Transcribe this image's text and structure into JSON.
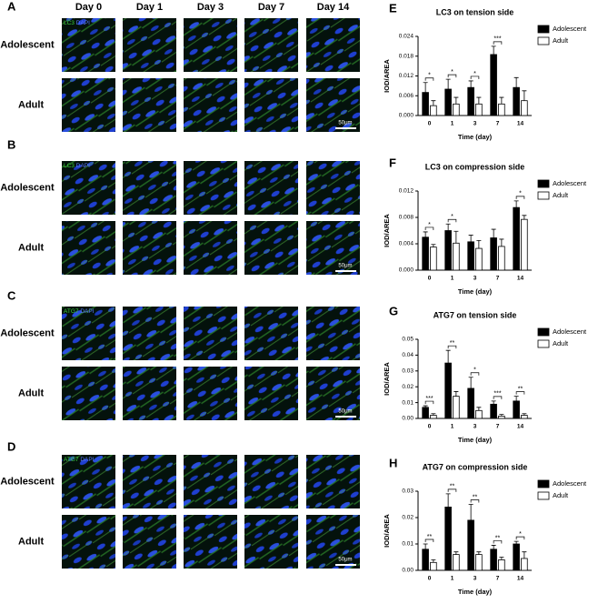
{
  "figure_panels": {
    "days": [
      "Day 0",
      "Day 1",
      "Day 3",
      "Day 7",
      "Day 14"
    ],
    "panels": [
      {
        "letter": "A",
        "marker": "LC3",
        "counterstain": "DAPI",
        "groups": [
          "Adolescent",
          "Adult"
        ],
        "scale_bar": "50μm"
      },
      {
        "letter": "B",
        "marker": "LC3",
        "counterstain": "DAPI",
        "groups": [
          "Adolescent",
          "Adult"
        ],
        "scale_bar": "50μm"
      },
      {
        "letter": "C",
        "marker": "ATG7",
        "counterstain": "DAPI",
        "groups": [
          "Adolescent",
          "Adult"
        ],
        "scale_bar": "50μm"
      },
      {
        "letter": "D",
        "marker": "ATG7",
        "counterstain": "DAPI",
        "groups": [
          "Adolescent",
          "Adult"
        ],
        "scale_bar": "50μm"
      }
    ]
  },
  "chart_data": [
    {
      "type": "bar",
      "letter": "E",
      "title": "LC3 on tension side",
      "xlabel": "Time (day)",
      "ylabel": "IOD/AREA",
      "categories": [
        "0",
        "1",
        "3",
        "7",
        "14"
      ],
      "ylim": [
        0,
        0.024
      ],
      "yticks": [
        {
          "value": 0,
          "label": "0.000"
        },
        {
          "value": 0.006,
          "label": "0.006"
        },
        {
          "value": 0.012,
          "label": "0.012"
        },
        {
          "value": 0.018,
          "label": "0.018"
        },
        {
          "value": 0.024,
          "label": "0.024"
        }
      ],
      "legend": "right",
      "series": [
        {
          "name": "Adolescent",
          "color": "#000000",
          "values": [
            0.007,
            0.008,
            0.0085,
            0.0185,
            0.0085
          ],
          "errors": [
            0.003,
            0.003,
            0.002,
            0.0025,
            0.003
          ]
        },
        {
          "name": "Adult",
          "color": "#ffffff",
          "values": [
            0.003,
            0.0035,
            0.0035,
            0.0035,
            0.0045
          ],
          "errors": [
            0.0015,
            0.002,
            0.002,
            0.002,
            0.003
          ]
        }
      ],
      "significance": [
        "*",
        "*",
        "*",
        "***",
        null
      ]
    },
    {
      "type": "bar",
      "letter": "F",
      "title": "LC3 on compression side",
      "xlabel": "Time (day)",
      "ylabel": "IOD/AREA",
      "categories": [
        "0",
        "1",
        "3",
        "7",
        "14"
      ],
      "ylim": [
        0,
        0.012
      ],
      "yticks": [
        {
          "value": 0,
          "label": "0.000"
        },
        {
          "value": 0.004,
          "label": "0.004"
        },
        {
          "value": 0.008,
          "label": "0.008"
        },
        {
          "value": 0.012,
          "label": "0.012"
        }
      ],
      "legend": "right",
      "series": [
        {
          "name": "Adolescent",
          "color": "#000000",
          "values": [
            0.005,
            0.006,
            0.0043,
            0.0049,
            0.0095
          ],
          "errors": [
            0.0008,
            0.001,
            0.001,
            0.0013,
            0.001
          ]
        },
        {
          "name": "Adult",
          "color": "#ffffff",
          "values": [
            0.0035,
            0.0041,
            0.0033,
            0.0036,
            0.0077
          ],
          "errors": [
            0.0004,
            0.0018,
            0.0012,
            0.0011,
            0.0006
          ]
        }
      ],
      "significance": [
        "*",
        "*",
        null,
        null,
        "*"
      ]
    },
    {
      "type": "bar",
      "letter": "G",
      "title": "ATG7 on tension side",
      "xlabel": "Time (day)",
      "ylabel": "IOD/AREA",
      "categories": [
        "0",
        "1",
        "3",
        "7",
        "14"
      ],
      "ylim": [
        0,
        0.05
      ],
      "yticks": [
        {
          "value": 0,
          "label": "0.00"
        },
        {
          "value": 0.01,
          "label": "0.01"
        },
        {
          "value": 0.02,
          "label": "0.02"
        },
        {
          "value": 0.03,
          "label": "0.03"
        },
        {
          "value": 0.04,
          "label": "0.04"
        },
        {
          "value": 0.05,
          "label": "0.05"
        }
      ],
      "legend": "right",
      "series": [
        {
          "name": "Adolescent",
          "color": "#000000",
          "values": [
            0.007,
            0.035,
            0.019,
            0.009,
            0.011
          ],
          "errors": [
            0.001,
            0.008,
            0.007,
            0.002,
            0.003
          ]
        },
        {
          "name": "Adult",
          "color": "#ffffff",
          "values": [
            0.002,
            0.014,
            0.005,
            0.0015,
            0.002
          ],
          "errors": [
            0.001,
            0.003,
            0.002,
            0.001,
            0.001
          ]
        }
      ],
      "significance": [
        "***",
        "**",
        "*",
        "***",
        "**"
      ]
    },
    {
      "type": "bar",
      "letter": "H",
      "title": "ATG7 on compression side",
      "xlabel": "Time (day)",
      "ylabel": "IOD/AREA",
      "categories": [
        "0",
        "1",
        "3",
        "7",
        "14"
      ],
      "ylim": [
        0,
        0.03
      ],
      "yticks": [
        {
          "value": 0,
          "label": "0.00"
        },
        {
          "value": 0.01,
          "label": "0.01"
        },
        {
          "value": 0.02,
          "label": "0.02"
        },
        {
          "value": 0.03,
          "label": "0.03"
        }
      ],
      "legend": "right",
      "series": [
        {
          "name": "Adolescent",
          "color": "#000000",
          "values": [
            0.008,
            0.024,
            0.019,
            0.008,
            0.01
          ],
          "errors": [
            0.002,
            0.005,
            0.006,
            0.0015,
            0.001
          ]
        },
        {
          "name": "Adult",
          "color": "#ffffff",
          "values": [
            0.003,
            0.006,
            0.006,
            0.004,
            0.0045
          ],
          "errors": [
            0.001,
            0.001,
            0.001,
            0.001,
            0.0025
          ]
        }
      ],
      "significance": [
        "**",
        "**",
        "**",
        "**",
        "*"
      ]
    }
  ]
}
